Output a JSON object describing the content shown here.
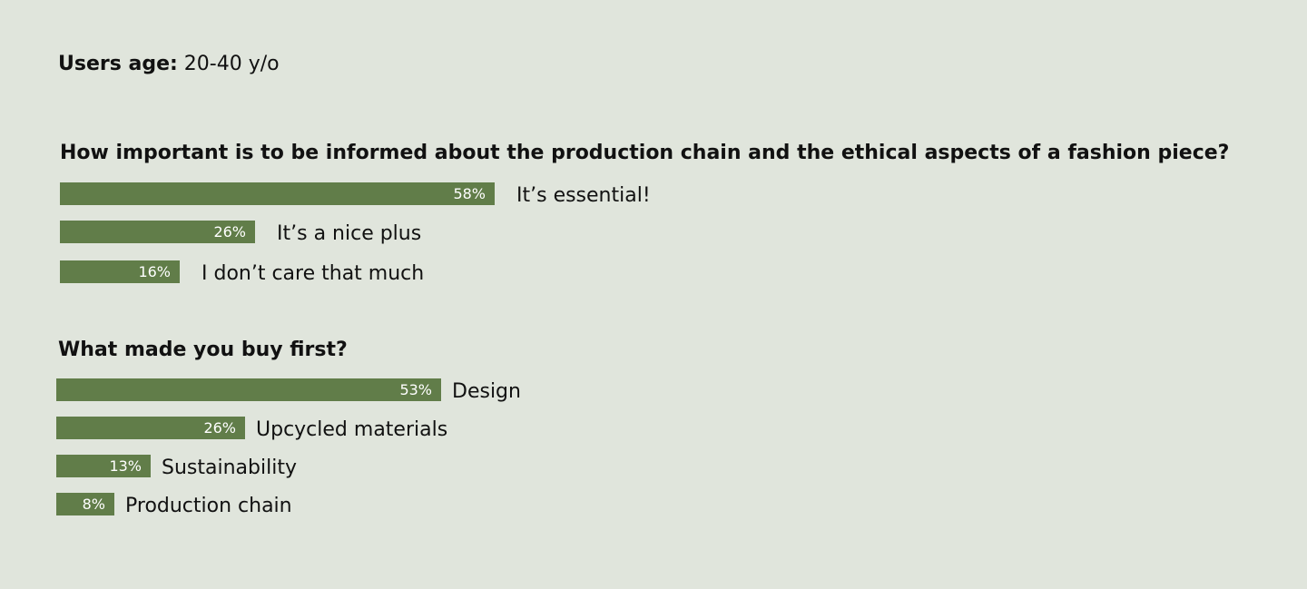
{
  "meta": {
    "label": "Users age:",
    "value": "20-40 y/o"
  },
  "chart_data": [
    {
      "type": "bar",
      "title": "How important is to be informed about the production chain and the ethical aspects of a fashion piece?",
      "categories": [
        "It’s essential!",
        "It’s a nice plus",
        "I don’t care that much"
      ],
      "values": [
        58,
        26,
        16
      ],
      "value_labels": [
        "58%",
        "26%",
        "16%"
      ],
      "unit": "%",
      "orientation": "horizontal",
      "bar_color": "#617d49",
      "grid": false
    },
    {
      "type": "bar",
      "title": "What made you buy first?",
      "categories": [
        "Design",
        "Upcycled materials",
        "Sustainability",
        "Production chain"
      ],
      "values": [
        53,
        26,
        13,
        8
      ],
      "value_labels": [
        "53%",
        "26%",
        "13%",
        "8%"
      ],
      "unit": "%",
      "orientation": "horizontal",
      "bar_color": "#617d49",
      "grid": false
    }
  ]
}
